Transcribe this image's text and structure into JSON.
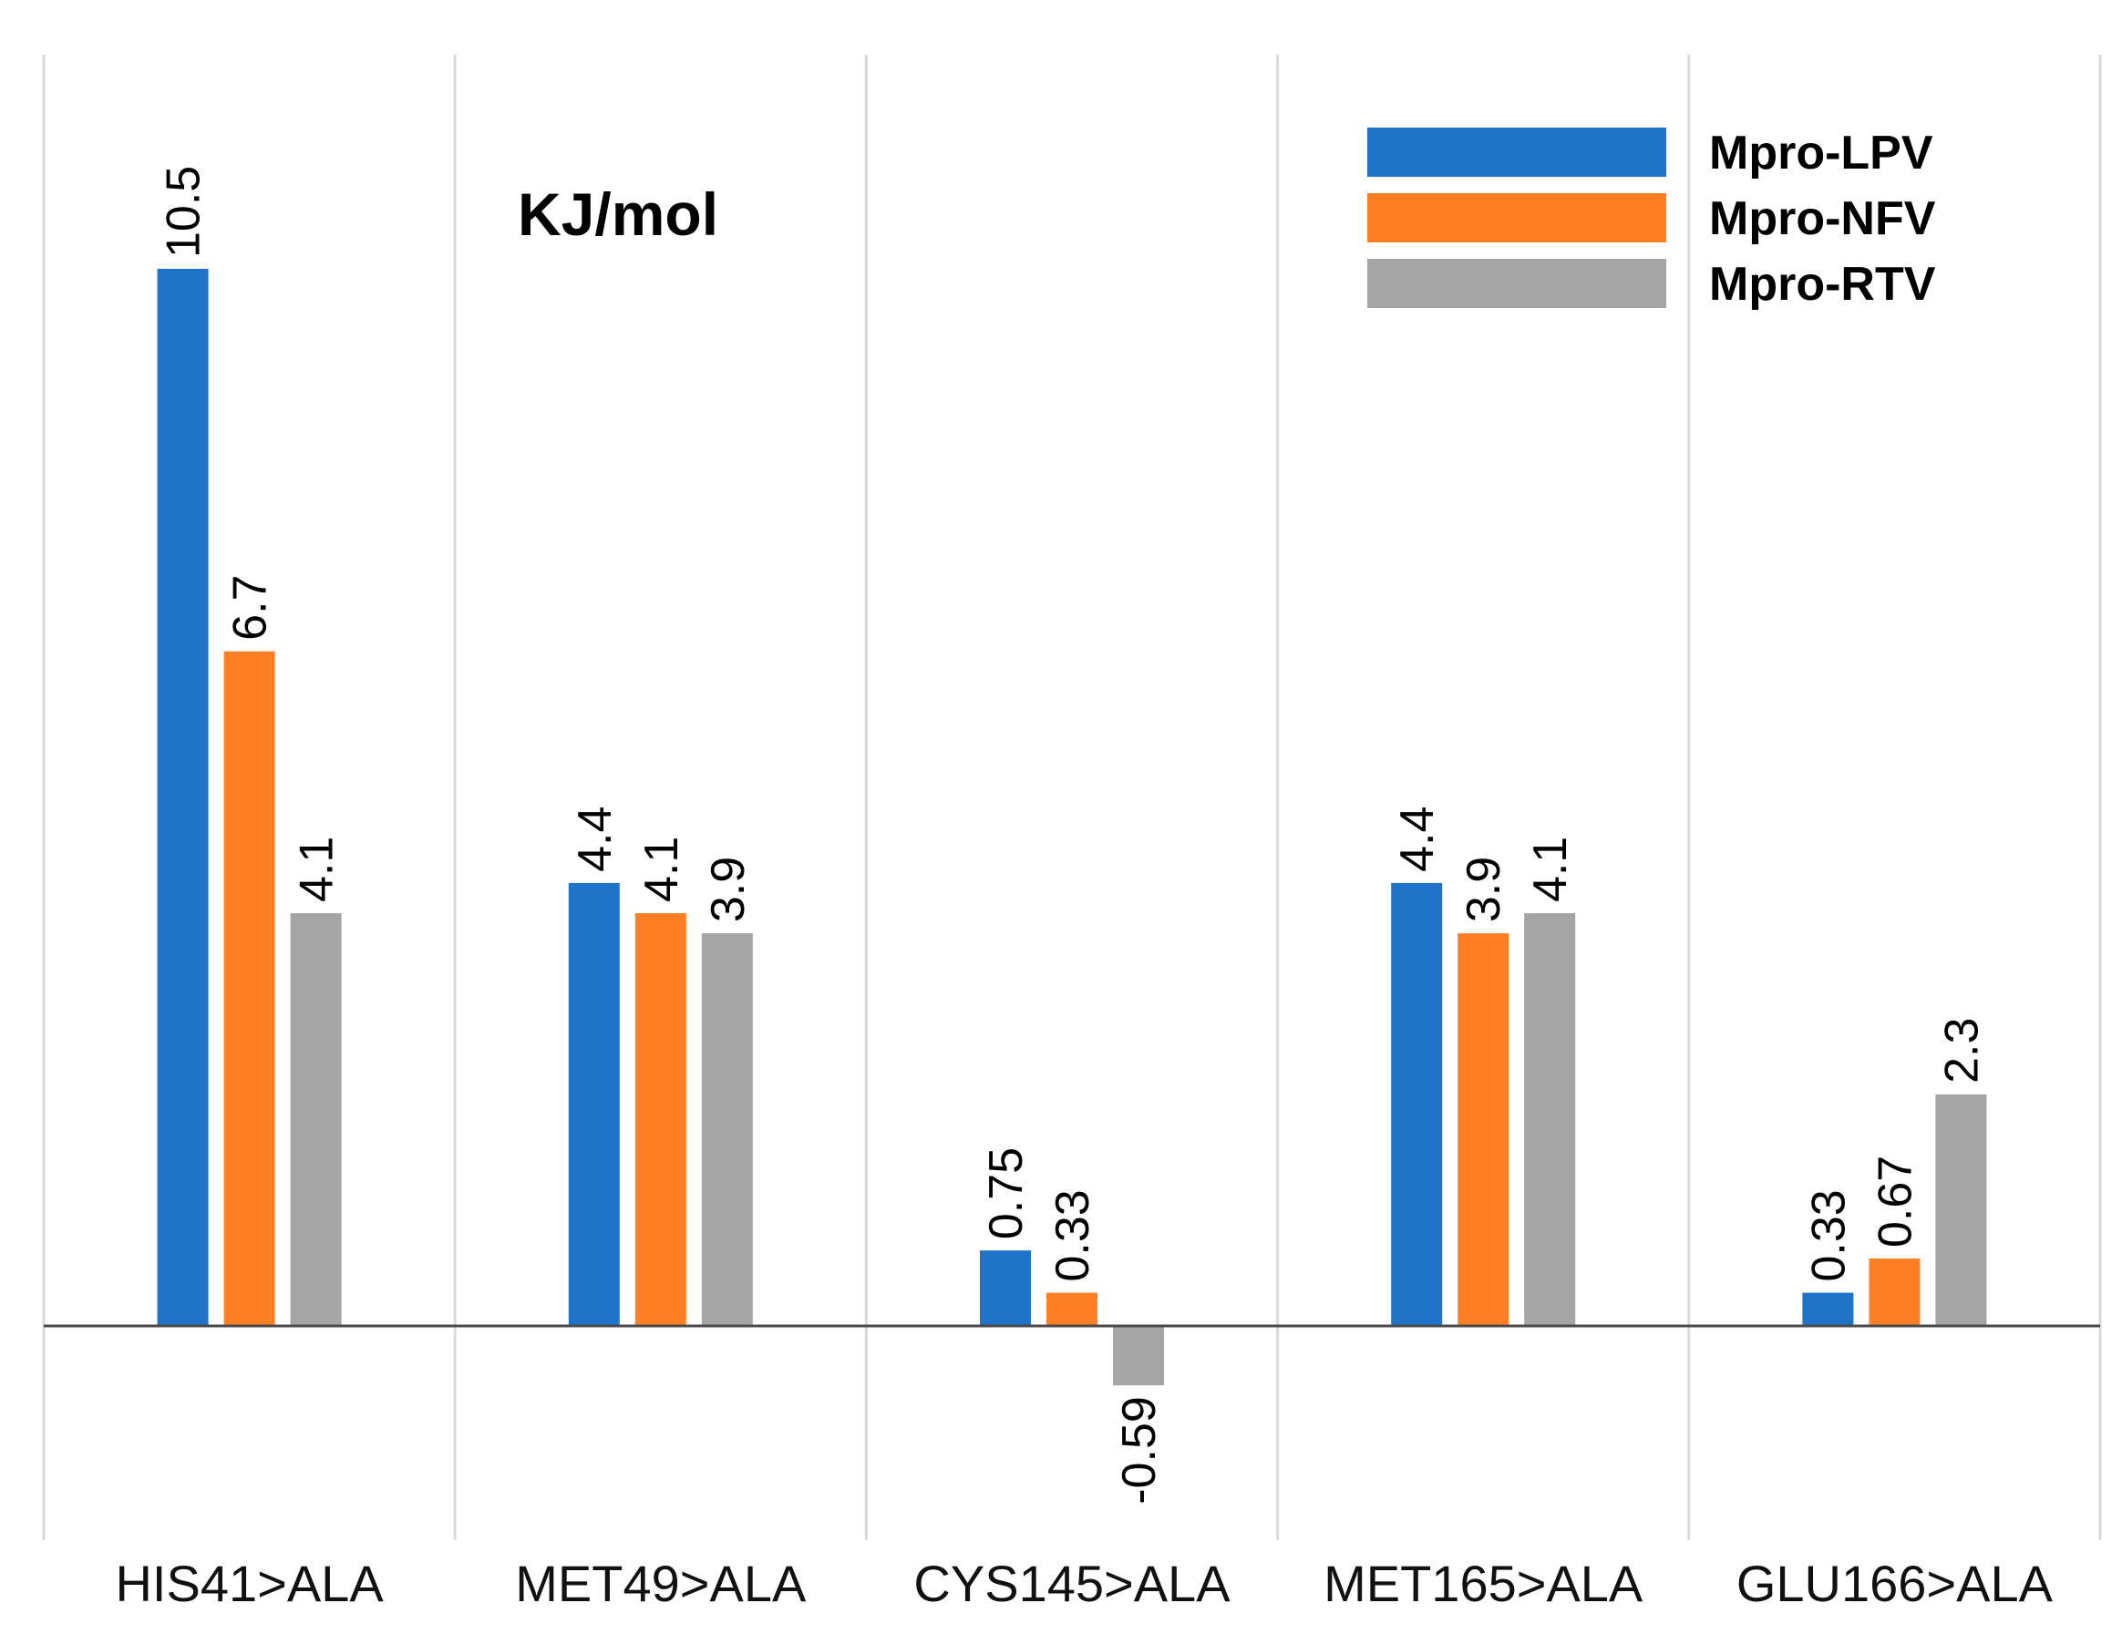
{
  "chart_data": {
    "type": "bar",
    "title": "",
    "unit_label": "KJ/mol",
    "xlabel": "",
    "ylabel": "",
    "categories": [
      "HIS41>ALA",
      "MET49>ALA",
      "CYS145>ALA",
      "MET165>ALA",
      "GLU166>ALA"
    ],
    "series": [
      {
        "name": "Mpro-LPV",
        "color": "#1f73c8",
        "values": [
          10.5,
          4.4,
          0.75,
          4.4,
          0.33
        ],
        "labels": [
          "10.5",
          "4.4",
          "0.75",
          "4.4",
          "0.33"
        ]
      },
      {
        "name": "Mpro-NFV",
        "color": "#ff7f24",
        "values": [
          6.7,
          4.1,
          0.33,
          3.9,
          0.67
        ],
        "labels": [
          "6.7",
          "4.1",
          "0.33",
          "3.9",
          "0.67"
        ]
      },
      {
        "name": "Mpro-RTV",
        "color": "#a5a5a5",
        "values": [
          4.1,
          3.9,
          -0.59,
          4.1,
          2.3
        ],
        "labels": [
          "4.1",
          "3.9",
          "-0.59",
          "4.1",
          "2.3"
        ]
      }
    ],
    "ylim": [
      -2.05,
      12.6
    ],
    "grid": "vertical-category-separators",
    "legend_position": "top-right"
  }
}
